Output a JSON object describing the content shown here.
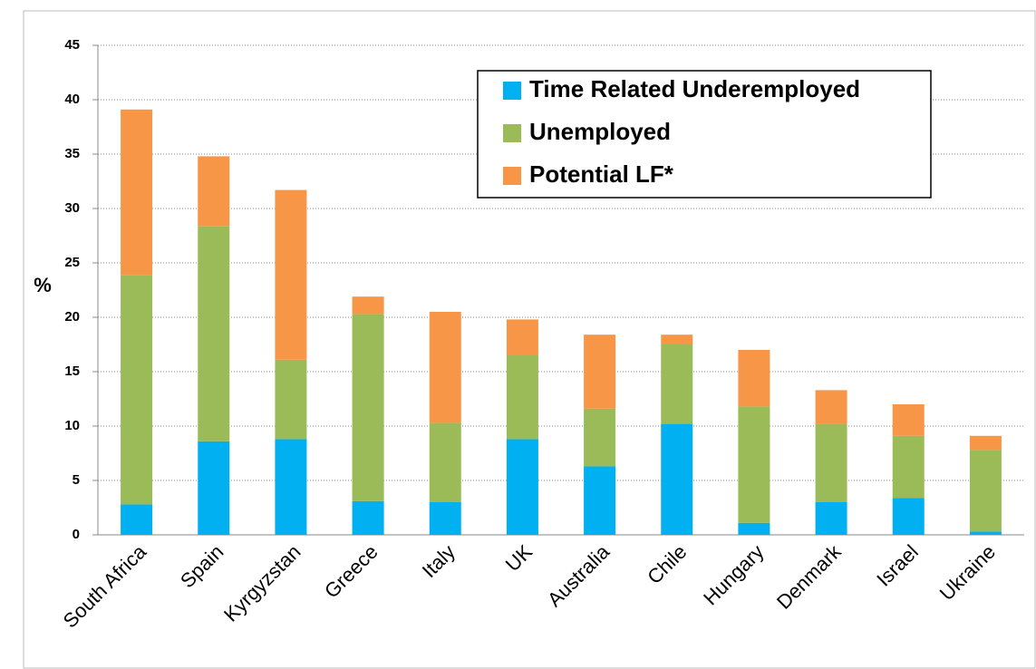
{
  "chart_data": {
    "type": "stacked-bar",
    "y_label": "%",
    "categories": [
      "South Africa",
      "Spain",
      "Kyrgyzstan",
      "Greece",
      "Italy",
      "UK",
      "Australia",
      "Chile",
      "Hungary",
      "Denmark",
      "Israel",
      "Ukraine"
    ],
    "series": [
      {
        "name": "Time Related Underemployed",
        "color": "#00b0f0",
        "values": [
          2.8,
          8.6,
          8.8,
          3.1,
          3.0,
          8.8,
          6.3,
          10.2,
          1.1,
          3.0,
          3.4,
          0.3
        ]
      },
      {
        "name": "Unemployed",
        "color": "#9bbb59",
        "values": [
          21.1,
          19.8,
          7.3,
          17.2,
          7.3,
          7.7,
          5.3,
          7.3,
          10.7,
          7.2,
          5.7,
          7.5
        ]
      },
      {
        "name": "Potential LF*",
        "color": "#f79646",
        "values": [
          15.2,
          6.4,
          15.6,
          1.6,
          10.2,
          3.3,
          6.8,
          0.9,
          5.2,
          3.1,
          2.9,
          1.3
        ]
      }
    ],
    "ylim": [
      0,
      45
    ],
    "yticks": [
      0,
      5,
      10,
      15,
      20,
      25,
      30,
      35,
      40,
      45
    ],
    "grid": true
  }
}
